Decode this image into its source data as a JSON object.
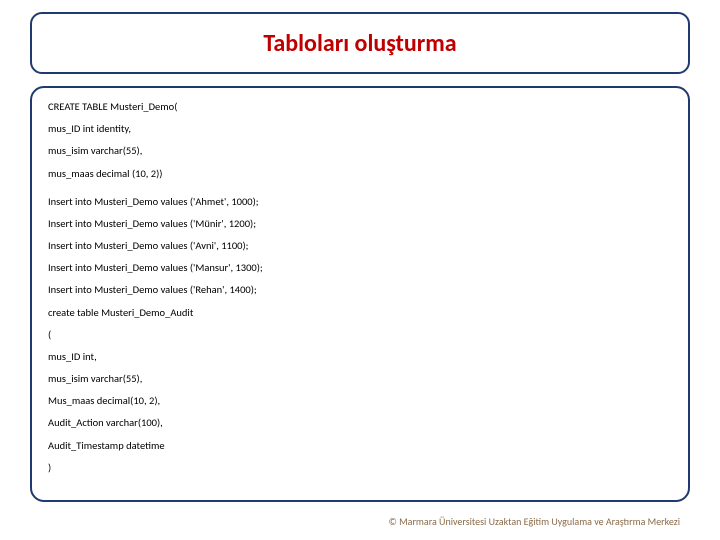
{
  "title": "Tabloları oluşturma",
  "code_lines": [
    "CREATE TABLE Musteri_Demo(",
    "mus_ID int identity,",
    "mus_isim varchar(55),",
    "mus_maas decimal (10, 2))",
    "",
    "Insert into Musteri_Demo values ('Ahmet', 1000);",
    "Insert into Musteri_Demo values ('Münir', 1200);",
    "Insert into Musteri_Demo values ('Avni', 1100);",
    "Insert into Musteri_Demo values ('Mansur', 1300);",
    "Insert into Musteri_Demo values ('Rehan', 1400);",
    " create table Musteri_Demo_Audit",
    "(",
    "mus_ID int,",
    "mus_isim varchar(55),",
    "Mus_maas decimal(10, 2),",
    "Audit_Action varchar(100),",
    "Audit_Timestamp datetime",
    ")"
  ],
  "footer": "©  Marmara Üniversitesi Uzaktan Eğitim Uygulama ve Araştırma Merkezi",
  "colors": {
    "border": "#1f3a6e",
    "title": "#c00000",
    "text": "#000000",
    "footer": "#8a6b4a",
    "background": "#ffffff"
  }
}
